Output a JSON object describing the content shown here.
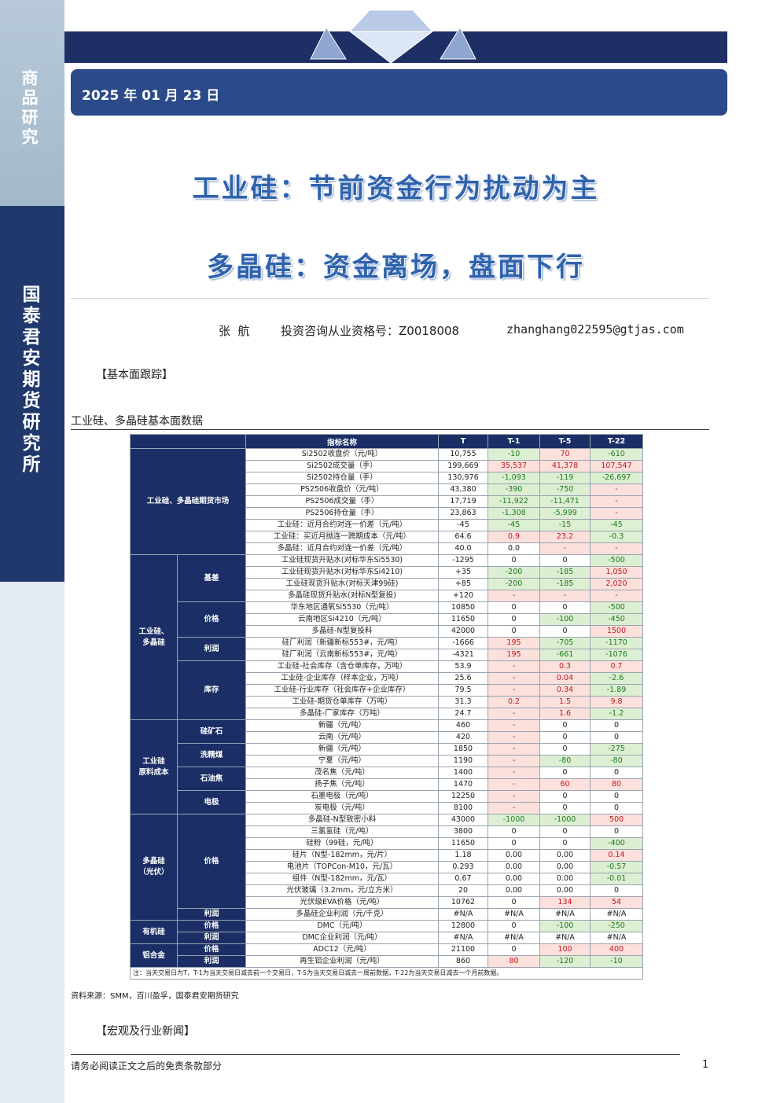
{
  "sidebar": {
    "top": "商品研究",
    "org": "国泰君安期货研究所"
  },
  "header": {
    "date": "2025 年 01 月 23 日",
    "title": "工业硅：节前资金行为扰动为主",
    "subtitle": "多晶硅：资金离场，盘面下行",
    "author": "张  航",
    "qualification": "投资咨询从业资格号：Z0018008",
    "email": "zhanghang022595@gtjas.com"
  },
  "section_heading": "【基本面跟踪】",
  "table_caption": "工业硅、多晶硅基本面数据",
  "table": {
    "columns": [
      "指标名称",
      "T",
      "T-1",
      "T-5",
      "T-22"
    ],
    "groups": [
      {
        "label": "工业硅、多晶硅期货市场",
        "subgroups": [
          {
            "rows": [
              [
                "Si2502收盘价（元/吨）",
                "10,755",
                "-10",
                "70",
                "-610"
              ],
              [
                "Si2502成交量（手）",
                "199,669",
                "35,537",
                "41,378",
                "107,547"
              ],
              [
                "Si2502持仓量（手）",
                "130,976",
                "-1,093",
                "-119",
                "-26,697"
              ],
              [
                "PS2506收盘价（元/吨）",
                "43,380",
                "-390",
                "-750",
                "-"
              ],
              [
                "PS2506成交量（手）",
                "17,719",
                "-11,922",
                "-11,471",
                "-"
              ],
              [
                "PS2506持仓量（手）",
                "23,863",
                "-1,308",
                "-5,999",
                "-"
              ],
              [
                "工业硅：近月合约对连一价差（元/吨）",
                "-45",
                "-45",
                "-15",
                "-45"
              ],
              [
                "工业硅：买近月抛连一跨期成本（元/吨）",
                "64.6",
                "0.9",
                "23.2",
                "-0.3"
              ],
              [
                "多晶硅：近月合约对连一价差（元/吨）",
                "40.0",
                "0.0",
                "-",
                "-"
              ]
            ]
          }
        ]
      },
      {
        "label": "工业硅、\n多晶硅",
        "subgroups": [
          {
            "label": "基差",
            "rows": [
              [
                "工业硅现货升贴水(对标华东Si5530)",
                "-1295",
                "0",
                "0",
                "-500"
              ],
              [
                "工业硅现货升贴水(对标华东Si4210)",
                "+35",
                "-200",
                "-185",
                "1,050"
              ],
              [
                "工业硅现货升贴水(对标天津99硅)",
                "+85",
                "-200",
                "-185",
                "2,020"
              ],
              [
                "多晶硅现货升贴水(对标N型复投)",
                "+120",
                "-",
                "-",
                "-"
              ]
            ]
          },
          {
            "label": "价格",
            "rows": [
              [
                "华东地区通氧Si5530（元/吨）",
                "10850",
                "0",
                "0",
                "-500"
              ],
              [
                "云南地区Si4210（元/吨）",
                "11650",
                "0",
                "-100",
                "-450"
              ],
              [
                "多晶硅-N型复投料",
                "42000",
                "0",
                "0",
                "1500"
              ]
            ]
          },
          {
            "label": "利润",
            "rows": [
              [
                "硅厂利润（新疆新标553#，元/吨）",
                "-1666",
                "195",
                "-705",
                "-1170"
              ],
              [
                "硅厂利润（云南新标553#，元/吨）",
                "-4321",
                "195",
                "-661",
                "-1076"
              ]
            ]
          },
          {
            "label": "库存",
            "rows": [
              [
                "工业硅-社会库存（含仓单库存，万吨）",
                "53.9",
                "-",
                "0.3",
                "0.7"
              ],
              [
                "工业硅-企业库存（样本企业，万吨）",
                "25.6",
                "-",
                "0.04",
                "-2.6"
              ],
              [
                "工业硅-行业库存（社会库存+企业库存）",
                "79.5",
                "-",
                "0.34",
                "-1.89"
              ],
              [
                "工业硅-期货仓单库存（万吨）",
                "31.3",
                "0.2",
                "1.5",
                "9.8"
              ],
              [
                "多晶硅-厂家库存（万吨）",
                "24.7",
                "-",
                "1.6",
                "-1.2"
              ]
            ]
          }
        ]
      },
      {
        "label": "工业硅\n原料成本",
        "subgroups": [
          {
            "label": "硅矿石",
            "rows": [
              [
                "新疆（元/吨）",
                "460",
                "-",
                "0",
                "0"
              ],
              [
                "云南（元/吨）",
                "420",
                "-",
                "0",
                "0"
              ]
            ]
          },
          {
            "label": "洗精煤",
            "rows": [
              [
                "新疆（元/吨）",
                "1850",
                "-",
                "0",
                "-275"
              ],
              [
                "宁夏（元/吨）",
                "1190",
                "-",
                "-80",
                "-80"
              ]
            ]
          },
          {
            "label": "石油焦",
            "rows": [
              [
                "茂名焦（元/吨）",
                "1400",
                "-",
                "0",
                "0"
              ],
              [
                "扬子焦（元/吨）",
                "1470",
                "-",
                "60",
                "80"
              ]
            ]
          },
          {
            "label": "电极",
            "rows": [
              [
                "石墨电极（元/吨）",
                "12250",
                "-",
                "0",
                "0"
              ],
              [
                "炭电极（元/吨）",
                "8100",
                "-",
                "0",
                "0"
              ]
            ]
          }
        ]
      },
      {
        "label": "多晶硅\n（光伏）",
        "subgroups": [
          {
            "label": "价格",
            "rows": [
              [
                "多晶硅-N型致密小料",
                "43000",
                "-1000",
                "-1000",
                "500"
              ],
              [
                "三氯氢硅（元/吨）",
                "3800",
                "0",
                "0",
                "0"
              ],
              [
                "硅粉（99硅，元/吨）",
                "11650",
                "0",
                "0",
                "-400"
              ],
              [
                "硅片（N型-182mm，元/片）",
                "1.18",
                "0.00",
                "0.00",
                "0.14"
              ],
              [
                "电池片（TOPCon-M10，元/瓦）",
                "0.293",
                "0.00",
                "0.00",
                "-0.57"
              ],
              [
                "组件（N型-182mm，元/瓦）",
                "0.67",
                "0.00",
                "0.00",
                "-0.01"
              ],
              [
                "光伏玻璃（3.2mm，元/立方米）",
                "20",
                "0.00",
                "0.00",
                "0"
              ],
              [
                "光伏级EVA价格（元/吨）",
                "10762",
                "0",
                "134",
                "54"
              ]
            ]
          },
          {
            "label": "利润",
            "rows": [
              [
                "多晶硅企业利润（元/千克）",
                "#N/A",
                "#N/A",
                "#N/A",
                "#N/A"
              ]
            ]
          }
        ]
      },
      {
        "label": "有机硅",
        "subgroups": [
          {
            "label": "价格",
            "rows": [
              [
                "DMC（元/吨）",
                "12800",
                "0",
                "-100",
                "-250"
              ]
            ]
          },
          {
            "label": "利润",
            "rows": [
              [
                "DMC企业利润（元/吨）",
                "#N/A",
                "#N/A",
                "#N/A",
                "#N/A"
              ]
            ]
          }
        ]
      },
      {
        "label": "铝合金",
        "subgroups": [
          {
            "label": "价格",
            "rows": [
              [
                "ADC12（元/吨）",
                "21100",
                "0",
                "100",
                "400"
              ]
            ]
          },
          {
            "label": "利润",
            "rows": [
              [
                "再生铝企业利润（元/吨）",
                "860",
                "80",
                "-120",
                "-10"
              ]
            ]
          }
        ]
      }
    ],
    "note": "注：当天交易日为T，T-1为当天交易日减去前一个交易日，T-5为当天交易日减去一周前数据，T-22为当天交易日减去一个月前数据。"
  },
  "source": "资料来源：SMM，百川盈孚，国泰君安期货研究",
  "news_heading": "【宏观及行业新闻】",
  "footer": {
    "disclaimer": "请务必阅读正文之后的免责条款部分",
    "page": "1"
  }
}
